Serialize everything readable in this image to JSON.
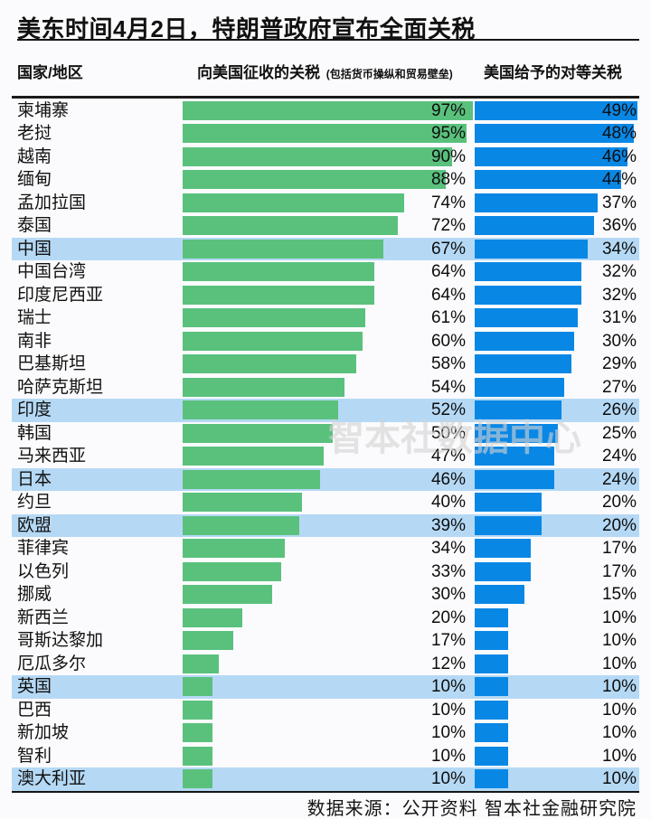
{
  "title": "美东时间4月2日，特朗普政府宣布全面关税",
  "columns": {
    "country": "国家/地区",
    "charged": "向美国征收的关税",
    "charged_note": "(包括货币操纵和贸易壁垒)",
    "reciprocal": "美国给予的对等关税"
  },
  "watermark": "智本社数据中心",
  "footer": "数据来源：公开资料  智本社金融研究院",
  "colors": {
    "green": "#5ac17d",
    "blue": "#0987e5",
    "highlight": "#b5d9f5",
    "rule": "#151515"
  },
  "chart_data": {
    "type": "bar",
    "orientation": "horizontal",
    "title": "美东时间4月2日，特朗普政府宣布全面关税",
    "categories": [
      "柬埔寨",
      "老挝",
      "越南",
      "缅甸",
      "孟加拉国",
      "泰国",
      "中国",
      "中国台湾",
      "印度尼西亚",
      "瑞士",
      "南非",
      "巴基斯坦",
      "哈萨克斯坦",
      "印度",
      "韩国",
      "马来西亚",
      "日本",
      "约旦",
      "欧盟",
      "菲律宾",
      "以色列",
      "挪威",
      "新西兰",
      "哥斯达黎加",
      "厄瓜多尔",
      "英国",
      "巴西",
      "新加坡",
      "智利",
      "澳大利亚"
    ],
    "series": [
      {
        "name": "向美国征收的关税 (包括货币操纵和贸易壁垒)",
        "unit": "%",
        "values": [
          97,
          95,
          90,
          88,
          74,
          72,
          67,
          64,
          64,
          61,
          60,
          58,
          54,
          52,
          50,
          47,
          46,
          40,
          39,
          34,
          33,
          30,
          20,
          17,
          12,
          10,
          10,
          10,
          10,
          10
        ],
        "axis_max": 97
      },
      {
        "name": "美国给予的对等关税",
        "unit": "%",
        "values": [
          49,
          48,
          46,
          44,
          37,
          36,
          34,
          32,
          32,
          31,
          30,
          29,
          27,
          26,
          25,
          24,
          24,
          20,
          20,
          17,
          17,
          15,
          10,
          10,
          10,
          10,
          10,
          10,
          10,
          10
        ],
        "axis_max": 49
      }
    ],
    "highlighted": [
      "中国",
      "印度",
      "日本",
      "欧盟",
      "英国",
      "澳大利亚"
    ],
    "grid": false,
    "legend": "none",
    "value_labels": "right-aligned per column"
  }
}
